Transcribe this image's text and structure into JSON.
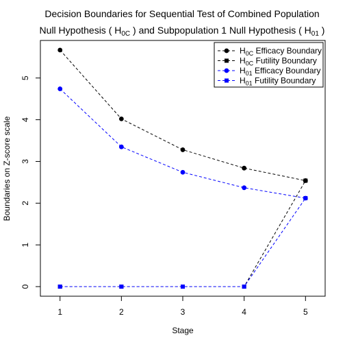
{
  "chart_data": {
    "type": "line",
    "title_line1": "Decision Boundaries for Sequential Test of Combined Population",
    "title_line2": {
      "p1": "Null Hypothesis ( H",
      "s1": "0C",
      "p2": " ) and Subpopulation 1 Null Hypothesis ( H",
      "s2": "01",
      "p3": " )"
    },
    "xlabel": "Stage",
    "ylabel": "Boundaries on Z-score scale",
    "x": [
      1,
      2,
      3,
      4,
      5
    ],
    "x_ticks": [
      "1",
      "2",
      "3",
      "4",
      "5"
    ],
    "y_ticks": [
      "0",
      "1",
      "2",
      "3",
      "4",
      "5"
    ],
    "xlim": [
      0.68,
      5.32
    ],
    "ylim": [
      -0.23,
      5.9
    ],
    "grid": false,
    "legend_position": "top-right",
    "series": [
      {
        "name": "Efficacy Boundary",
        "h": "H",
        "sub": "0C",
        "color": "#000000",
        "marker": "circle",
        "line": "dashed",
        "values": [
          5.67,
          4.02,
          3.28,
          2.84,
          2.54
        ]
      },
      {
        "name": "Futility Boundary",
        "h": "H",
        "sub": "0C",
        "color": "#000000",
        "marker": "square",
        "line": "dashed",
        "values": [
          0,
          0,
          0,
          0,
          2.54
        ]
      },
      {
        "name": "Efficacy Boundary",
        "h": "H",
        "sub": "01",
        "color": "#0000ff",
        "marker": "circle",
        "line": "dashed",
        "values": [
          4.74,
          3.35,
          2.74,
          2.37,
          2.12
        ]
      },
      {
        "name": "Futility Boundary",
        "h": "H",
        "sub": "01",
        "color": "#0000ff",
        "marker": "square",
        "line": "dashed",
        "values": [
          0,
          0,
          0,
          0,
          2.12
        ]
      }
    ]
  }
}
